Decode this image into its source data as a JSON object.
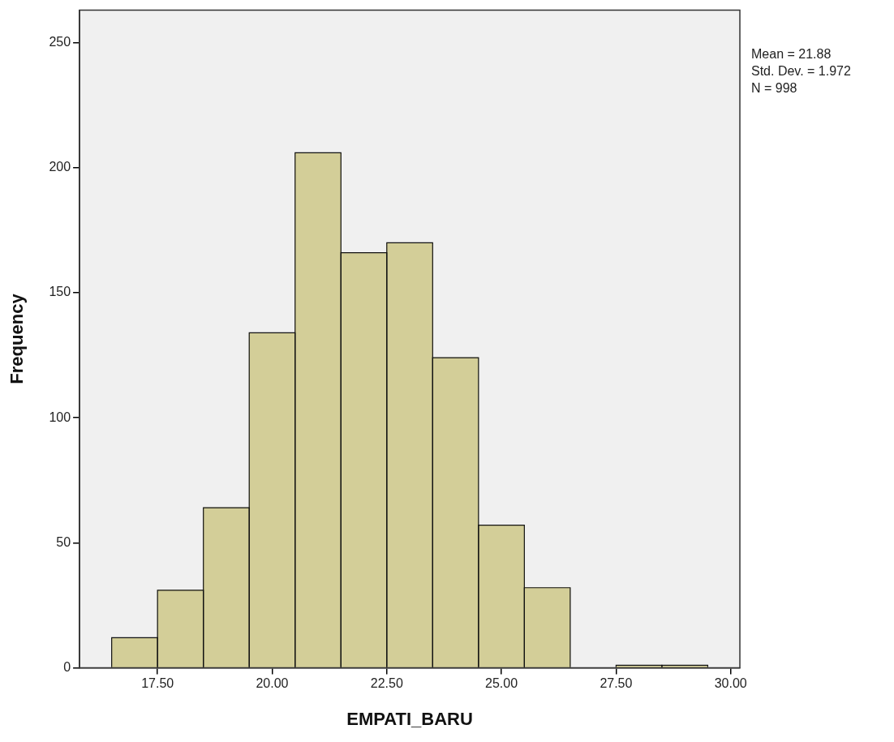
{
  "chart_data": {
    "type": "histogram",
    "xlabel": "EMPATI_BARU",
    "ylabel": "Frequency",
    "annotations": [
      "Mean = 21.88",
      "Std. Dev. = 1.972",
      "N = 998"
    ],
    "bins": [
      16.5,
      17.5,
      18.5,
      19.5,
      20.5,
      21.5,
      22.5,
      23.5,
      24.5,
      25.5,
      26.5,
      27.5,
      28.5,
      29.5
    ],
    "values": [
      12,
      31,
      64,
      134,
      206,
      166,
      170,
      124,
      57,
      32,
      0,
      1,
      1
    ],
    "color": "#d3ce98",
    "xlim": [
      15.8,
      30.2
    ],
    "xticks": [
      {
        "value": 17.5,
        "label": "17.50"
      },
      {
        "value": 20,
        "label": "20.00"
      },
      {
        "value": 22.5,
        "label": "22.50"
      },
      {
        "value": 25,
        "label": "25.00"
      },
      {
        "value": 27.5,
        "label": "27.50"
      },
      {
        "value": 30,
        "label": "30.00"
      }
    ],
    "ylim": [
      0,
      263
    ],
    "yticks": [
      0,
      50,
      100,
      150,
      200,
      250
    ],
    "grid": false,
    "legend": false
  }
}
